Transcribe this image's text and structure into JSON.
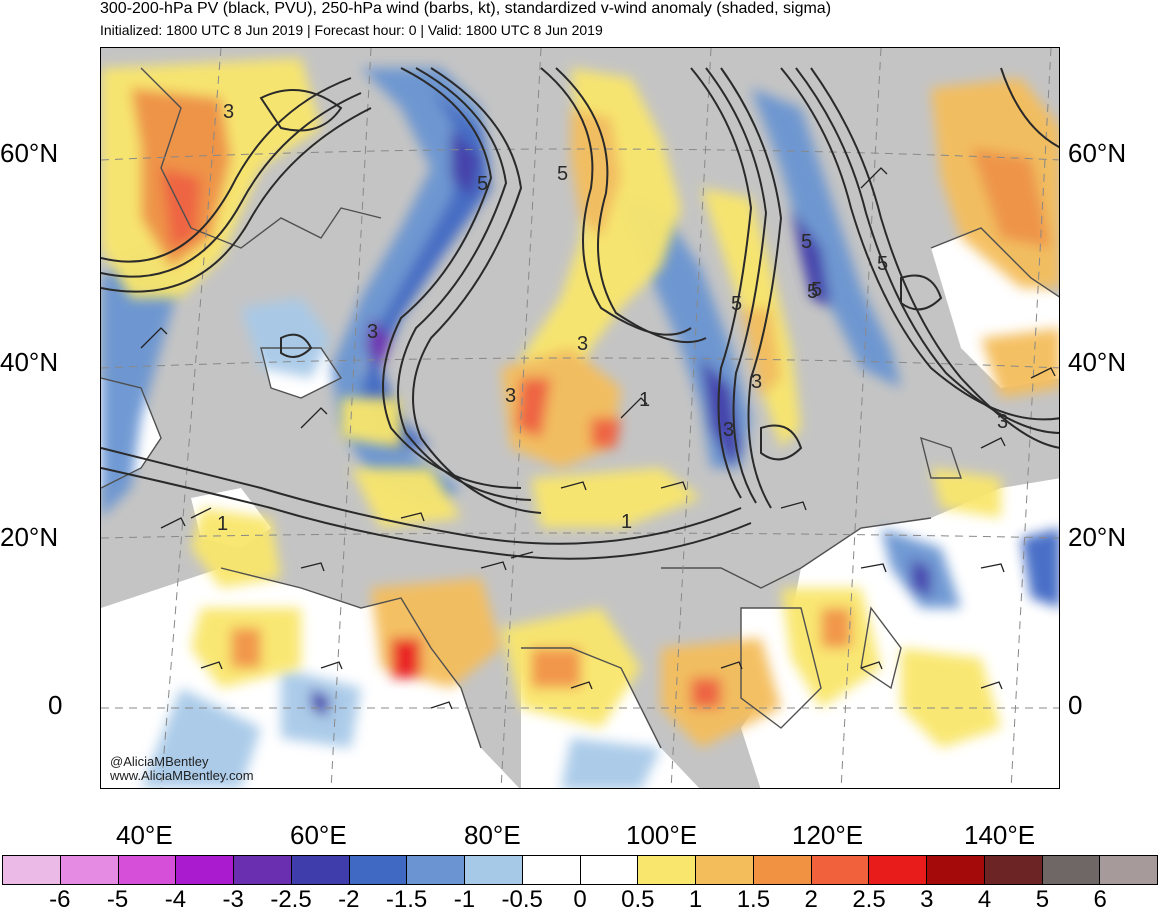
{
  "header": {
    "title": "300-200-hPa PV (black, PVU), 250-hPa wind (barbs, kt), standardized v-wind anomaly (shaded, sigma)",
    "subtitle": "Initialized: 1800 UTC 8 Jun 2019 | Forecast hour: 0 | Valid: 1800 UTC 8 Jun 2019"
  },
  "map": {
    "lat_labels": [
      "60°N",
      "40°N",
      "20°N",
      "0"
    ],
    "lon_labels": [
      "40°E",
      "60°E",
      "80°E",
      "100°E",
      "120°E",
      "140°E"
    ],
    "contour_labels": [
      "3",
      "5",
      "5",
      "5",
      "3",
      "3",
      "5",
      "5",
      "3",
      "3",
      "3",
      "1",
      "1",
      "3",
      "5",
      "5",
      "1"
    ],
    "credit_line1": "@AliciaMBentley",
    "credit_line2": "www.AliciaMBentley.com",
    "colors": {
      "land": "#c4c4c4",
      "ocean": "#ffffff",
      "coast": "#505050",
      "contour": "#2a2a2a"
    }
  },
  "colorbar": {
    "labels": [
      "-6",
      "-5",
      "-4",
      "-3",
      "-2.5",
      "-2",
      "-1.5",
      "-1",
      "-0.5",
      "0",
      "0.5",
      "1",
      "1.5",
      "2",
      "2.5",
      "3",
      "4",
      "5",
      "6"
    ],
    "colors": [
      "#ebbae6",
      "#e58be3",
      "#d64fd8",
      "#aa1bd0",
      "#6a2eb0",
      "#3f3cab",
      "#4069c4",
      "#6b95d2",
      "#a7c9e8",
      "#ffffff",
      "#ffffff",
      "#f9e66c",
      "#f4bd5b",
      "#f19243",
      "#f1613c",
      "#e91c1c",
      "#a50a0a",
      "#6c2424",
      "#6f6666",
      "#a69a9a"
    ]
  }
}
